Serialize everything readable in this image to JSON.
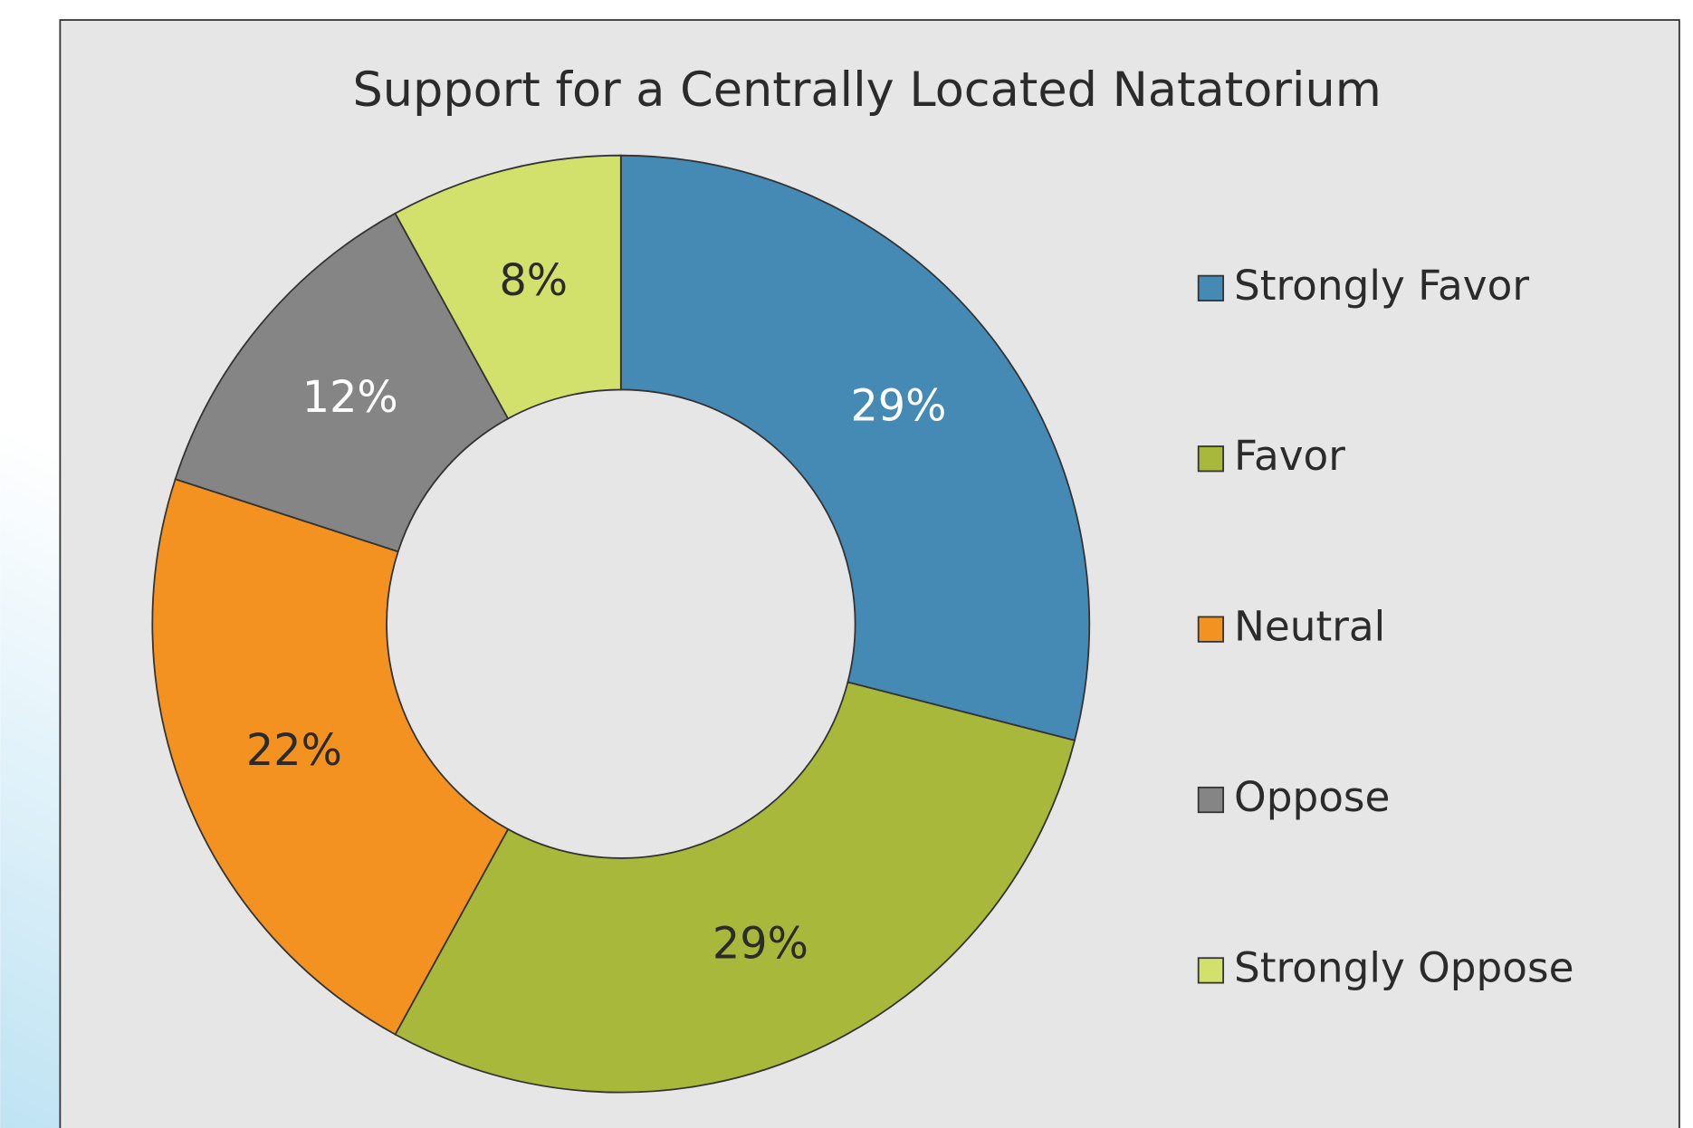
{
  "chart_data": {
    "type": "donut",
    "title": "Support for a Centrally Located Natatorium",
    "categories": [
      "Strongly Favor",
      "Favor",
      "Neutral",
      "Oppose",
      "Strongly Oppose"
    ],
    "values": [
      29,
      29,
      22,
      12,
      8
    ],
    "value_labels": [
      "29%",
      "29%",
      "22%",
      "12%",
      "8%"
    ],
    "colors": [
      "#4589b5",
      "#a8b83a",
      "#f39220",
      "#858585",
      "#d2e06c"
    ],
    "legend": "right"
  }
}
